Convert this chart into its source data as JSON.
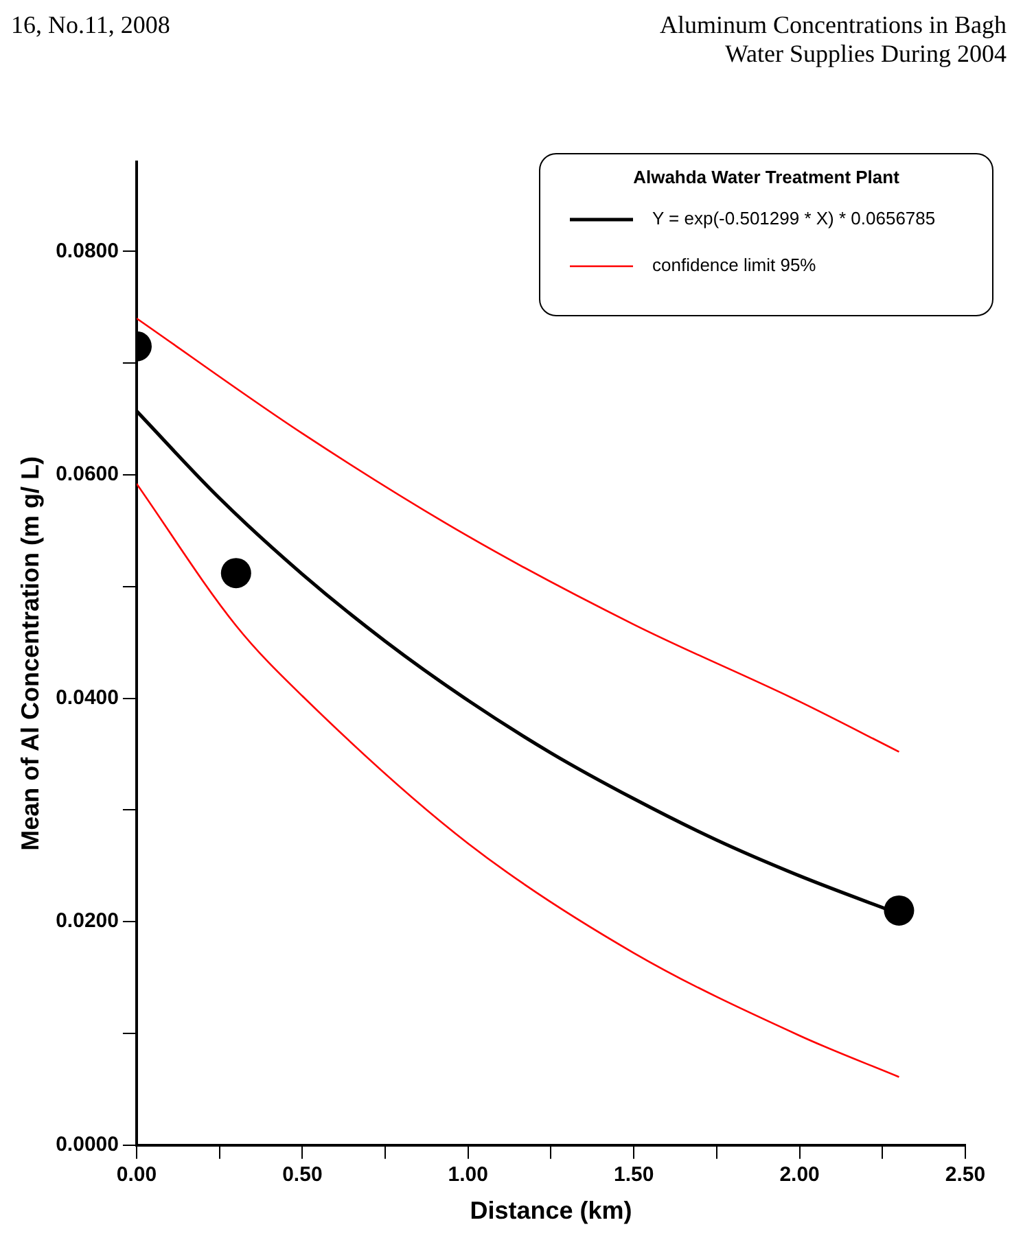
{
  "chart_data": {
    "type": "line",
    "title": null,
    "legend_title": "Alwahda Water Treatment Plant",
    "xlabel": "Distance (km)",
    "ylabel": "Mean of Al Concentration (m g/ L)",
    "annotations": [
      "16, No.11, 2008",
      "Aluminum Concentrations in Bagh",
      "Water Supplies During 2004"
    ],
    "xlim": [
      0,
      2.5
    ],
    "ylim": [
      0,
      0.088
    ],
    "xticks": [
      {
        "value": 0,
        "label": "0.00"
      },
      {
        "value": 0.25,
        "label": null
      },
      {
        "value": 0.5,
        "label": "0.50"
      },
      {
        "value": 0.75,
        "label": null
      },
      {
        "value": 1,
        "label": "1.00"
      },
      {
        "value": 1.25,
        "label": null
      },
      {
        "value": 1.5,
        "label": "1.50"
      },
      {
        "value": 1.75,
        "label": null
      },
      {
        "value": 2,
        "label": "2.00"
      },
      {
        "value": 2.25,
        "label": null
      },
      {
        "value": 2.5,
        "label": "2.50"
      }
    ],
    "yticks": [
      {
        "value": 0,
        "label": "0.0000"
      },
      {
        "value": 0.01,
        "label": null
      },
      {
        "value": 0.02,
        "label": "0.0200"
      },
      {
        "value": 0.03,
        "label": null
      },
      {
        "value": 0.04,
        "label": "0.0400"
      },
      {
        "value": 0.05,
        "label": null
      },
      {
        "value": 0.06,
        "label": "0.0600"
      },
      {
        "value": 0.07,
        "label": null
      },
      {
        "value": 0.08,
        "label": "0.0800"
      }
    ],
    "grid": false,
    "legend": "top right",
    "line_style": "solid",
    "series": [
      {
        "name": "Y = exp(-0.501299 * X) * 0.0656785",
        "color": "#000000",
        "x": [
          0,
          0.25,
          0.5,
          0.75,
          1,
          1.25,
          1.5,
          1.75,
          2,
          2.3
        ],
        "values": [
          0.0657,
          0.0579,
          0.0511,
          0.0451,
          0.0398,
          0.0351,
          0.031,
          0.0273,
          0.0241,
          0.0207
        ]
      },
      {
        "name": "confidence limit 95%",
        "color": "#ff0000",
        "x": [
          0,
          0.5,
          1,
          1.5,
          2,
          2.3
        ],
        "values": [
          0.074,
          0.0637,
          0.0545,
          0.0466,
          0.0397,
          0.0352
        ]
      },
      {
        "color": "#ff0000",
        "x": [
          0,
          0.3,
          0.5,
          1,
          1.5,
          2,
          2.3
        ],
        "values": [
          0.0592,
          0.0465,
          0.0402,
          0.027,
          0.0172,
          0.0098,
          0.0061
        ]
      },
      {
        "type": "scatter",
        "color": "#000000",
        "marker": "circle",
        "x": [
          0,
          0.3,
          2.3
        ],
        "values": [
          0.0715,
          0.0512,
          0.021
        ]
      }
    ]
  }
}
